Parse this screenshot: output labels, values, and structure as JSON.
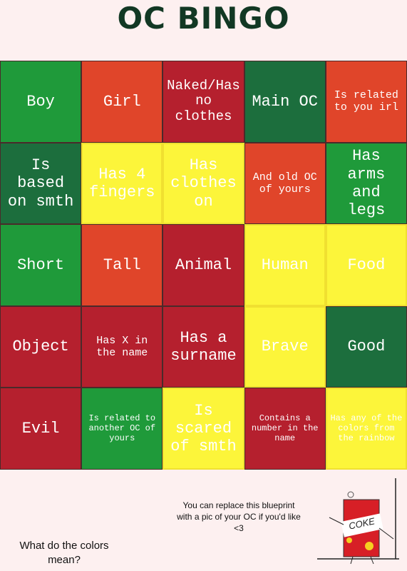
{
  "header": {
    "title": "OC BINGO"
  },
  "board": {
    "rows": [
      [
        {
          "text": "Boy",
          "color": "#1f9a3a"
        },
        {
          "text": "Girl",
          "color": "#e0452a"
        },
        {
          "text": "Naked/Has no clothes",
          "color": "#b5202e"
        },
        {
          "text": "Main OC",
          "color": "#1c6e3d"
        },
        {
          "text": "Is related to you irl",
          "color": "#e0452a"
        }
      ],
      [
        {
          "text": "Is based on smth",
          "color": "#1c6e3d"
        },
        {
          "text": "Has 4 fingers",
          "color": "#fcf53a"
        },
        {
          "text": "Has clothes on",
          "color": "#fcf53a"
        },
        {
          "text": "And old OC of yours",
          "color": "#e0452a"
        },
        {
          "text": "Has arms and legs",
          "color": "#1f9a3a"
        }
      ],
      [
        {
          "text": "Short",
          "color": "#1f9a3a"
        },
        {
          "text": "Tall",
          "color": "#e0452a"
        },
        {
          "text": "Animal",
          "color": "#b5202e"
        },
        {
          "text": "Human",
          "color": "#fcf53a"
        },
        {
          "text": "Food",
          "color": "#fcf53a"
        }
      ],
      [
        {
          "text": "Object",
          "color": "#b5202e"
        },
        {
          "text": "Has X in the name",
          "color": "#b5202e"
        },
        {
          "text": "Has a surname",
          "color": "#b5202e"
        },
        {
          "text": "Brave",
          "color": "#fcf53a"
        },
        {
          "text": "Good",
          "color": "#1c6e3d"
        }
      ],
      [
        {
          "text": "Evil",
          "color": "#b5202e"
        },
        {
          "text": "Is related to another OC of yours",
          "color": "#1f9a3a"
        },
        {
          "text": "Is scared of smth",
          "color": "#fcf53a"
        },
        {
          "text": "Contains a number in the name",
          "color": "#b5202e"
        },
        {
          "text": "Has any of the colors from the rainbow",
          "color": "#fcf53a"
        }
      ]
    ]
  },
  "footer": {
    "note": "You can replace this blueprint with a pic of your OC if you'd like <3",
    "question": "What do the colors mean?",
    "image_label": "COKE"
  }
}
